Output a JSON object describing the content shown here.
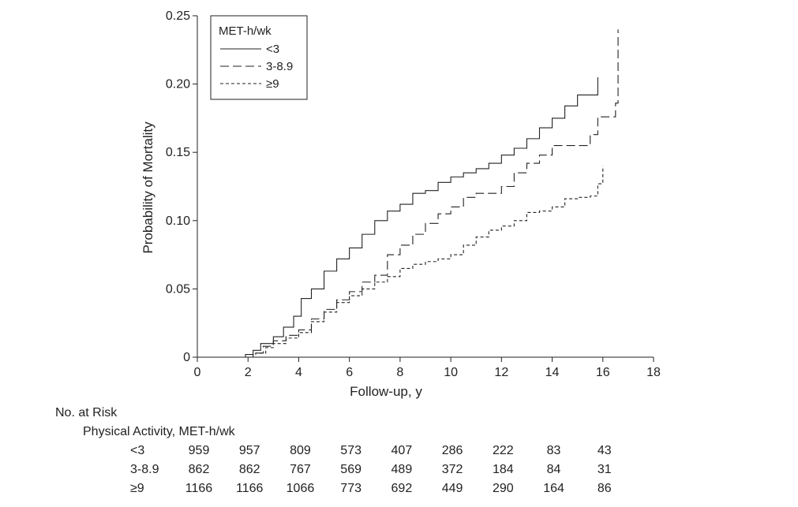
{
  "chart_data": {
    "type": "line",
    "subtype": "kaplan-meier-cumulative-incidence",
    "xlabel": "Follow-up, y",
    "ylabel": "Probability of Mortality",
    "xlim": [
      0,
      18
    ],
    "ylim": [
      0,
      0.25
    ],
    "xticks": [
      0,
      2,
      4,
      6,
      8,
      10,
      12,
      14,
      16,
      18
    ],
    "xtick_labels": [
      "0",
      "2",
      "4",
      "6",
      "8",
      "10",
      "12",
      "14",
      "16",
      "18"
    ],
    "yticks": [
      0,
      0.05,
      0.1,
      0.15,
      0.2,
      0.25
    ],
    "ytick_labels": [
      "0",
      "0.05",
      "0.10",
      "0.15",
      "0.20",
      "0.25"
    ],
    "grid": false,
    "legend": {
      "title": "MET-h/wk",
      "placement": "top-left",
      "entries": [
        "<3",
        "3-8.9",
        "≥9"
      ]
    },
    "series": [
      {
        "name": "<3",
        "style": "solid",
        "points": [
          [
            0,
            0
          ],
          [
            1.9,
            0.002
          ],
          [
            2.2,
            0.005
          ],
          [
            2.5,
            0.01
          ],
          [
            3.0,
            0.015
          ],
          [
            3.4,
            0.022
          ],
          [
            3.8,
            0.03
          ],
          [
            4.1,
            0.043
          ],
          [
            4.5,
            0.05
          ],
          [
            5.0,
            0.063
          ],
          [
            5.5,
            0.072
          ],
          [
            6.0,
            0.08
          ],
          [
            6.5,
            0.09
          ],
          [
            7.0,
            0.1
          ],
          [
            7.5,
            0.107
          ],
          [
            8.0,
            0.112
          ],
          [
            8.5,
            0.12
          ],
          [
            9.0,
            0.122
          ],
          [
            9.5,
            0.128
          ],
          [
            10.0,
            0.132
          ],
          [
            10.5,
            0.135
          ],
          [
            11.0,
            0.138
          ],
          [
            11.5,
            0.142
          ],
          [
            12.0,
            0.148
          ],
          [
            12.5,
            0.153
          ],
          [
            13.0,
            0.16
          ],
          [
            13.5,
            0.168
          ],
          [
            14.0,
            0.175
          ],
          [
            14.5,
            0.184
          ],
          [
            15.0,
            0.192
          ],
          [
            15.8,
            0.192
          ],
          [
            15.8,
            0.205
          ]
        ]
      },
      {
        "name": "3-8.9",
        "style": "long-dash",
        "points": [
          [
            0,
            0
          ],
          [
            2.2,
            0.003
          ],
          [
            2.6,
            0.008
          ],
          [
            3.0,
            0.012
          ],
          [
            3.5,
            0.016
          ],
          [
            4.0,
            0.02
          ],
          [
            4.5,
            0.028
          ],
          [
            5.0,
            0.035
          ],
          [
            5.5,
            0.042
          ],
          [
            6.0,
            0.048
          ],
          [
            6.5,
            0.055
          ],
          [
            7.0,
            0.06
          ],
          [
            7.5,
            0.075
          ],
          [
            8.0,
            0.082
          ],
          [
            8.5,
            0.09
          ],
          [
            9.0,
            0.098
          ],
          [
            9.5,
            0.105
          ],
          [
            10.0,
            0.11
          ],
          [
            10.5,
            0.117
          ],
          [
            11.0,
            0.12
          ],
          [
            11.5,
            0.12
          ],
          [
            12.0,
            0.125
          ],
          [
            12.5,
            0.135
          ],
          [
            13.0,
            0.142
          ],
          [
            13.5,
            0.148
          ],
          [
            14.0,
            0.155
          ],
          [
            15.0,
            0.155
          ],
          [
            15.5,
            0.163
          ],
          [
            15.8,
            0.176
          ],
          [
            16.5,
            0.186
          ],
          [
            16.6,
            0.24
          ]
        ]
      },
      {
        "name": "≥9",
        "style": "short-dash",
        "points": [
          [
            0,
            0
          ],
          [
            2.3,
            0.003
          ],
          [
            2.7,
            0.007
          ],
          [
            3.0,
            0.01
          ],
          [
            3.5,
            0.014
          ],
          [
            4.0,
            0.018
          ],
          [
            4.5,
            0.026
          ],
          [
            5.0,
            0.033
          ],
          [
            5.5,
            0.04
          ],
          [
            6.0,
            0.045
          ],
          [
            6.5,
            0.05
          ],
          [
            7.0,
            0.055
          ],
          [
            7.5,
            0.059
          ],
          [
            8.0,
            0.065
          ],
          [
            8.5,
            0.068
          ],
          [
            9.0,
            0.07
          ],
          [
            9.5,
            0.072
          ],
          [
            10.0,
            0.075
          ],
          [
            10.5,
            0.082
          ],
          [
            11.0,
            0.088
          ],
          [
            11.5,
            0.093
          ],
          [
            12.0,
            0.096
          ],
          [
            12.5,
            0.1
          ],
          [
            13.0,
            0.106
          ],
          [
            13.5,
            0.107
          ],
          [
            14.0,
            0.11
          ],
          [
            14.5,
            0.116
          ],
          [
            15.0,
            0.117
          ],
          [
            15.5,
            0.118
          ],
          [
            15.8,
            0.127
          ],
          [
            16.0,
            0.14
          ]
        ]
      }
    ]
  },
  "risk_table": {
    "title": "No. at Risk",
    "subtitle": "Physical Activity, MET-h/wk",
    "rows": [
      {
        "label": "<3",
        "values": [
          "959",
          "957",
          "809",
          "573",
          "407",
          "286",
          "222",
          "83",
          "43"
        ]
      },
      {
        "label": "3-8.9",
        "values": [
          "862",
          "862",
          "767",
          "569",
          "489",
          "372",
          "184",
          "84",
          "31"
        ]
      },
      {
        "label": "≥9",
        "values": [
          "1166",
          "1166",
          "1066",
          "773",
          "692",
          "449",
          "290",
          "164",
          "86"
        ]
      }
    ]
  }
}
